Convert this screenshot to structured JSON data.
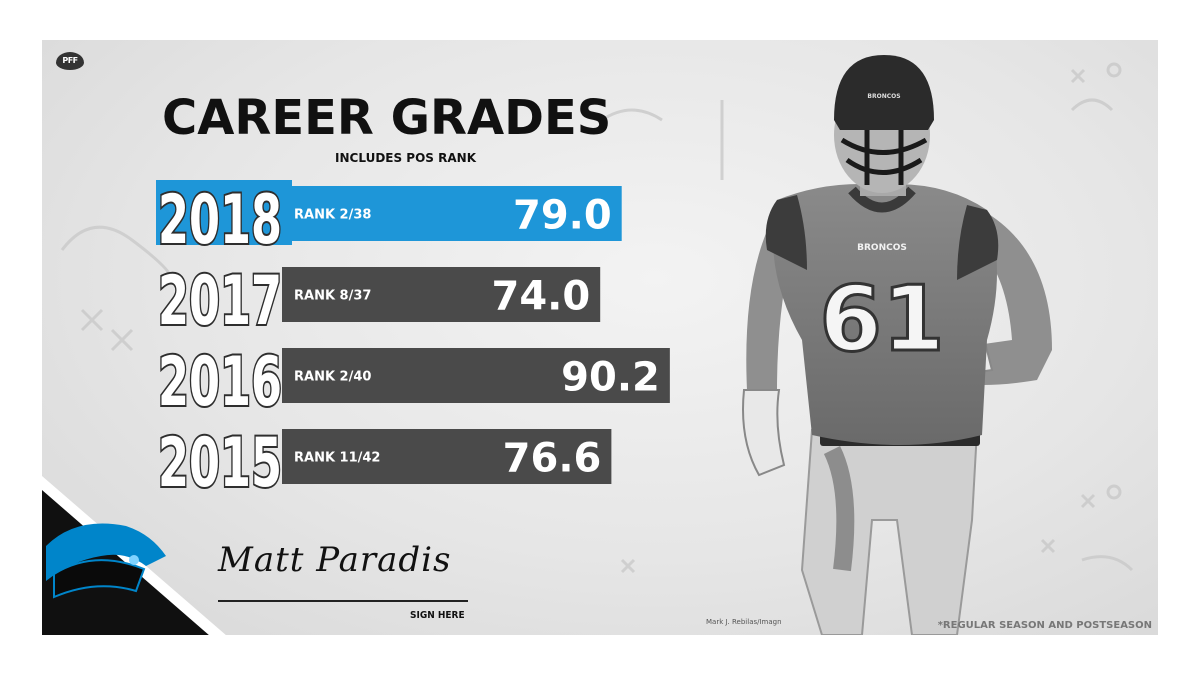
{
  "branding": {
    "logo_text": "PFF"
  },
  "player": {
    "signature_name": "Matt Paradis",
    "sign_prompt": "SIGN HERE",
    "jersey_number": "61",
    "jersey_wordmark": "BRONCOS",
    "helmet_wordmark": "BRONCOS"
  },
  "photo_credit": "Mark J. Rebilas/Imagn",
  "footnote": "*REGULAR SEASON AND POSTSEASON",
  "colors": {
    "highlight": "#1e96d8",
    "bar": "#4a4a4a",
    "text_dark": "#111111",
    "panther_blue": "#0085ca"
  },
  "chart_data": {
    "type": "bar",
    "orientation": "horizontal",
    "title": "CAREER GRADES",
    "subtitle": "INCLUDES POS RANK",
    "xlabel": "",
    "ylabel": "",
    "xlim": [
      0,
      100
    ],
    "categories": [
      "2018",
      "2017",
      "2016",
      "2015"
    ],
    "values": [
      79.0,
      74.0,
      90.2,
      76.6
    ],
    "value_labels": [
      "79.0",
      "74.0",
      "90.2",
      "76.6"
    ],
    "rank_labels": [
      "RANK 2/38",
      "RANK 8/37",
      "RANK 2/40",
      "RANK 11/42"
    ],
    "highlighted": [
      true,
      false,
      false,
      false
    ]
  }
}
